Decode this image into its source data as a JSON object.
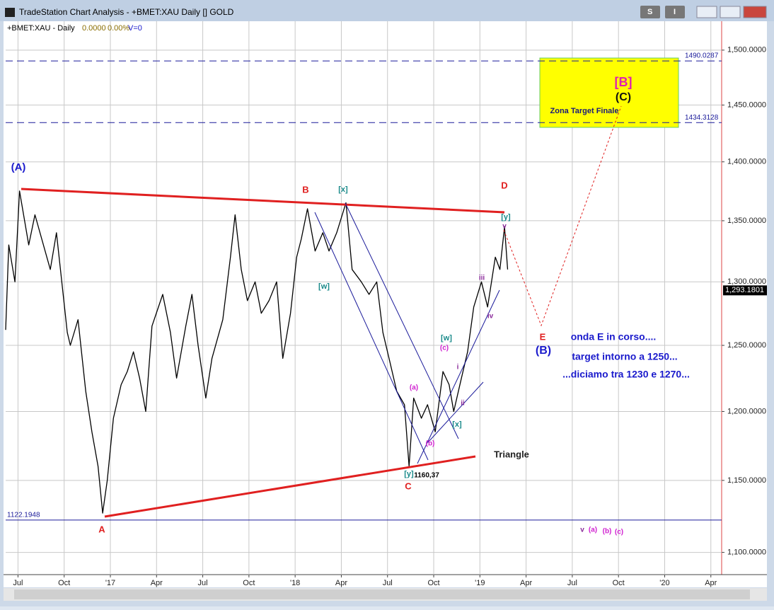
{
  "window": {
    "title": "TradeStation Chart Analysis - +BMET:XAU Daily [] GOLD",
    "buttons": [
      "S",
      "I"
    ]
  },
  "header": {
    "symbol": "+BMET:XAU - Daily",
    "change": "0.0000",
    "change_pct": "0.00%",
    "volume": "V=0"
  },
  "chart_data": {
    "type": "line",
    "log_scale": true,
    "grid": true,
    "xlim": [
      -0.8,
      45.7
    ],
    "xticks": [
      {
        "value": 0,
        "label": "Jul"
      },
      {
        "value": 3,
        "label": "Oct"
      },
      {
        "value": 6,
        "label": "'17"
      },
      {
        "value": 9,
        "label": "Apr"
      },
      {
        "value": 12,
        "label": "Jul"
      },
      {
        "value": 15,
        "label": "Oct"
      },
      {
        "value": 18,
        "label": "'18"
      },
      {
        "value": 21,
        "label": "Apr"
      },
      {
        "value": 24,
        "label": "Jul"
      },
      {
        "value": 27,
        "label": "Oct"
      },
      {
        "value": 30,
        "label": "'19"
      },
      {
        "value": 33,
        "label": "Apr"
      },
      {
        "value": 36,
        "label": "Jul"
      },
      {
        "value": 39,
        "label": "Oct"
      },
      {
        "value": 42,
        "label": "'20"
      },
      {
        "value": 45,
        "label": "Apr"
      }
    ],
    "ylim": [
      1085,
      1527
    ],
    "yticks": [
      {
        "value": 1100,
        "label": "1,100.0000"
      },
      {
        "value": 1150,
        "label": "1,150.0000"
      },
      {
        "value": 1200,
        "label": "1,200.0000"
      },
      {
        "value": 1250,
        "label": "1,250.0000"
      },
      {
        "value": 1300,
        "label": "1,300.0000"
      },
      {
        "value": 1350,
        "label": "1,350.0000"
      },
      {
        "value": 1400,
        "label": "1,400.0000"
      },
      {
        "value": 1450,
        "label": "1,450.0000"
      },
      {
        "value": 1500,
        "label": "1,500.0000"
      }
    ],
    "series": [
      {
        "color": "#000000",
        "x": [
          -0.8,
          -0.6,
          -0.2,
          0.1,
          0.7,
          1.1,
          2.1,
          2.5,
          3.2,
          3.4,
          3.9,
          4.4,
          4.8,
          5.2,
          5.5,
          5.8,
          6.2,
          6.7,
          7.1,
          7.5,
          7.9,
          8.3,
          8.7,
          9.4,
          9.9,
          10.3,
          10.9,
          11.3,
          11.7,
          12.2,
          12.6,
          13.3,
          13.8,
          14.1,
          14.5,
          14.9,
          15.4,
          15.8,
          16.3,
          16.8,
          17.2,
          17.7,
          18.1,
          18.4,
          18.8,
          19.3,
          19.8,
          20.2,
          20.7,
          21.3,
          21.7,
          22.3,
          22.8,
          23.3,
          23.7,
          24.1,
          24.6,
          25.1,
          25.4,
          25.7,
          26.2,
          26.6,
          27.1,
          27.6,
          28.0,
          28.3,
          28.8,
          29.2,
          29.6,
          30.1,
          30.5,
          31.0,
          31.3,
          31.6,
          31.8
        ],
        "values": [
          1262,
          1330,
          1300,
          1375,
          1330,
          1355,
          1310,
          1340,
          1260,
          1250,
          1270,
          1215,
          1185,
          1160,
          1127,
          1150,
          1195,
          1220,
          1230,
          1245,
          1225,
          1200,
          1265,
          1290,
          1260,
          1225,
          1265,
          1290,
          1250,
          1210,
          1240,
          1270,
          1320,
          1355,
          1310,
          1285,
          1300,
          1275,
          1285,
          1300,
          1240,
          1275,
          1320,
          1335,
          1360,
          1325,
          1340,
          1325,
          1340,
          1365,
          1310,
          1300,
          1290,
          1300,
          1260,
          1240,
          1215,
          1205,
          1160,
          1210,
          1195,
          1205,
          1185,
          1230,
          1220,
          1200,
          1225,
          1245,
          1280,
          1300,
          1280,
          1320,
          1310,
          1345,
          1310
        ]
      }
    ],
    "levels": [
      1490.0287,
      1434.3128,
      1122.1948
    ],
    "last_price": {
      "value": 1293.1801,
      "label": "1,293.1801"
    },
    "annotations": [
      "(A)",
      "A",
      "B",
      "[x]",
      "[w]",
      "C",
      "[y]",
      "1160,37",
      "(a)",
      "(b)",
      "(c)",
      "[w]",
      "[x]",
      "i",
      "ii",
      "iii",
      "iv",
      "v",
      "D",
      "[y]",
      "E",
      "(B)",
      "Triangle",
      "onda E in corso....",
      "target intorno a 1250...",
      "...diciamo tra 1230 e 1270...",
      "[B]",
      "(C)",
      "Zona Target Finale",
      "v",
      "(a)",
      "(b)",
      "(c)"
    ]
  }
}
